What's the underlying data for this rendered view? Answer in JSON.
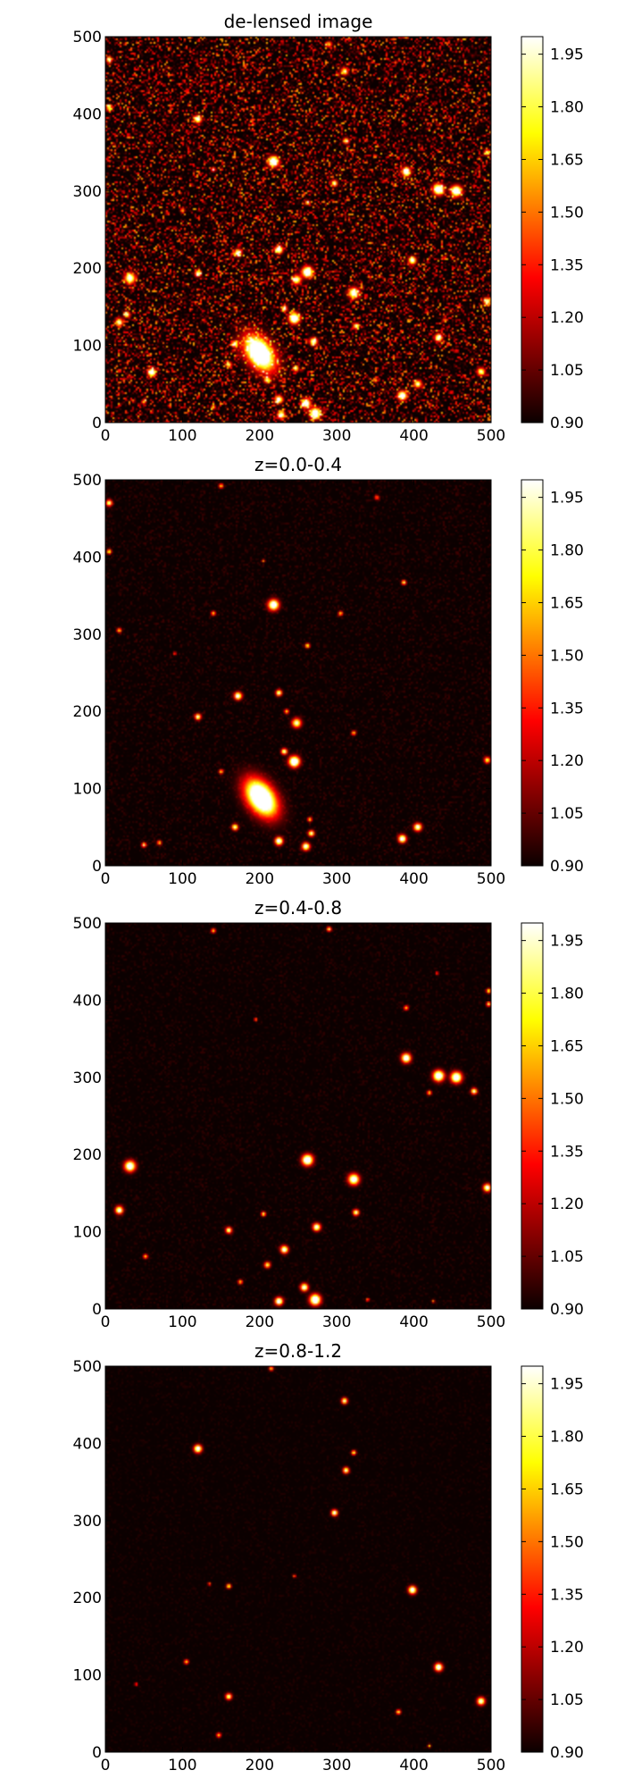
{
  "figure": {
    "background": "#ffffff",
    "colormap": "hot"
  },
  "chart_data": [
    {
      "type": "heatmap",
      "title": "de-lensed image",
      "xlabel": "",
      "ylabel": "",
      "xlim": [
        0,
        500
      ],
      "ylim": [
        0,
        500
      ],
      "xticks": [
        0,
        100,
        200,
        300,
        400,
        500
      ],
      "yticks": [
        0,
        100,
        200,
        300,
        400,
        500
      ],
      "colorbar": {
        "range": [
          0.9,
          2.0
        ],
        "ticks": [
          "0.90",
          "1.05",
          "1.20",
          "1.35",
          "1.50",
          "1.65",
          "1.80",
          "1.95"
        ]
      },
      "noise": 0.32,
      "sources": [
        {
          "x": 200,
          "y": 90,
          "r": 16,
          "i": 2.0
        },
        {
          "x": 218,
          "y": 338,
          "r": 7,
          "i": 1.8
        },
        {
          "x": 390,
          "y": 325,
          "r": 6,
          "i": 1.7
        },
        {
          "x": 432,
          "y": 302,
          "r": 7,
          "i": 1.9
        },
        {
          "x": 455,
          "y": 300,
          "r": 7,
          "i": 1.9
        },
        {
          "x": 32,
          "y": 187,
          "r": 7,
          "i": 1.7
        },
        {
          "x": 262,
          "y": 195,
          "r": 7,
          "i": 1.9
        },
        {
          "x": 322,
          "y": 168,
          "r": 7,
          "i": 1.7
        },
        {
          "x": 245,
          "y": 135,
          "r": 7,
          "i": 1.9
        },
        {
          "x": 60,
          "y": 65,
          "r": 5,
          "i": 1.9
        },
        {
          "x": 120,
          "y": 393,
          "r": 5,
          "i": 1.7
        },
        {
          "x": 398,
          "y": 210,
          "r": 5,
          "i": 1.7
        },
        {
          "x": 432,
          "y": 110,
          "r": 5,
          "i": 1.7
        },
        {
          "x": 487,
          "y": 66,
          "r": 5,
          "i": 1.6
        },
        {
          "x": 225,
          "y": 224,
          "r": 5,
          "i": 1.8
        },
        {
          "x": 248,
          "y": 185,
          "r": 6,
          "i": 1.6
        },
        {
          "x": 172,
          "y": 220,
          "r": 5,
          "i": 1.6
        },
        {
          "x": 270,
          "y": 105,
          "r": 5,
          "i": 1.7
        },
        {
          "x": 385,
          "y": 35,
          "r": 6,
          "i": 1.8
        },
        {
          "x": 405,
          "y": 50,
          "r": 5,
          "i": 1.6
        },
        {
          "x": 225,
          "y": 30,
          "r": 5,
          "i": 1.7
        },
        {
          "x": 260,
          "y": 25,
          "r": 6,
          "i": 1.8
        },
        {
          "x": 272,
          "y": 12,
          "r": 7,
          "i": 1.9
        },
        {
          "x": 228,
          "y": 10,
          "r": 5,
          "i": 1.7
        },
        {
          "x": 18,
          "y": 130,
          "r": 5,
          "i": 1.6
        },
        {
          "x": 28,
          "y": 140,
          "r": 4,
          "i": 1.6
        },
        {
          "x": 310,
          "y": 455,
          "r": 5,
          "i": 1.5
        },
        {
          "x": 297,
          "y": 310,
          "r": 4,
          "i": 1.6
        },
        {
          "x": 312,
          "y": 365,
          "r": 4,
          "i": 1.5
        },
        {
          "x": 495,
          "y": 350,
          "r": 4,
          "i": 1.5
        },
        {
          "x": 495,
          "y": 157,
          "r": 5,
          "i": 1.6
        },
        {
          "x": 160,
          "y": 75,
          "r": 4,
          "i": 1.5
        },
        {
          "x": 168,
          "y": 102,
          "r": 4,
          "i": 1.6
        },
        {
          "x": 120,
          "y": 193,
          "r": 4,
          "i": 1.6
        },
        {
          "x": 210,
          "y": 55,
          "r": 4,
          "i": 1.5
        },
        {
          "x": 247,
          "y": 70,
          "r": 4,
          "i": 1.5
        },
        {
          "x": 290,
          "y": 490,
          "r": 4,
          "i": 1.4
        },
        {
          "x": 5,
          "y": 470,
          "r": 4,
          "i": 1.5
        },
        {
          "x": 5,
          "y": 408,
          "r": 4,
          "i": 1.5
        },
        {
          "x": 140,
          "y": 328,
          "r": 3,
          "i": 1.4
        },
        {
          "x": 262,
          "y": 285,
          "r": 3,
          "i": 1.5
        },
        {
          "x": 325,
          "y": 125,
          "r": 4,
          "i": 1.5
        },
        {
          "x": 232,
          "y": 148,
          "r": 4,
          "i": 1.5
        },
        {
          "x": 100,
          "y": 275,
          "r": 3,
          "i": 1.4
        },
        {
          "x": 350,
          "y": 55,
          "r": 3,
          "i": 1.4
        },
        {
          "x": 440,
          "y": 133,
          "r": 3,
          "i": 1.3
        },
        {
          "x": 50,
          "y": 27,
          "r": 3,
          "i": 1.4
        },
        {
          "x": 140,
          "y": 20,
          "r": 3,
          "i": 1.4
        }
      ]
    },
    {
      "type": "heatmap",
      "title": "z=0.0-0.4",
      "xlabel": "",
      "ylabel": "",
      "xlim": [
        0,
        500
      ],
      "ylim": [
        0,
        500
      ],
      "xticks": [
        0,
        100,
        200,
        300,
        400,
        500
      ],
      "yticks": [
        0,
        100,
        200,
        300,
        400,
        500
      ],
      "colorbar": {
        "range": [
          0.9,
          2.0
        ],
        "ticks": [
          "0.90",
          "1.05",
          "1.20",
          "1.35",
          "1.50",
          "1.65",
          "1.80",
          "1.95"
        ]
      },
      "noise": 0.04,
      "sources": [
        {
          "x": 202,
          "y": 88,
          "r": 17,
          "i": 2.0
        },
        {
          "x": 218,
          "y": 338,
          "r": 7,
          "i": 1.8
        },
        {
          "x": 245,
          "y": 135,
          "r": 7,
          "i": 1.9
        },
        {
          "x": 172,
          "y": 220,
          "r": 5,
          "i": 1.7
        },
        {
          "x": 248,
          "y": 185,
          "r": 6,
          "i": 1.6
        },
        {
          "x": 225,
          "y": 224,
          "r": 4,
          "i": 1.6
        },
        {
          "x": 120,
          "y": 193,
          "r": 4,
          "i": 1.6
        },
        {
          "x": 168,
          "y": 50,
          "r": 4,
          "i": 1.6
        },
        {
          "x": 225,
          "y": 32,
          "r": 5,
          "i": 1.8
        },
        {
          "x": 260,
          "y": 25,
          "r": 5,
          "i": 1.7
        },
        {
          "x": 267,
          "y": 42,
          "r": 4,
          "i": 1.6
        },
        {
          "x": 385,
          "y": 35,
          "r": 5,
          "i": 1.8
        },
        {
          "x": 405,
          "y": 50,
          "r": 5,
          "i": 1.7
        },
        {
          "x": 232,
          "y": 148,
          "r": 4,
          "i": 1.6
        },
        {
          "x": 495,
          "y": 137,
          "r": 4,
          "i": 1.5
        },
        {
          "x": 5,
          "y": 470,
          "r": 4,
          "i": 1.6
        },
        {
          "x": 5,
          "y": 407,
          "r": 3,
          "i": 1.5
        },
        {
          "x": 387,
          "y": 367,
          "r": 3,
          "i": 1.5
        },
        {
          "x": 140,
          "y": 327,
          "r": 3,
          "i": 1.4
        },
        {
          "x": 305,
          "y": 327,
          "r": 3,
          "i": 1.4
        },
        {
          "x": 262,
          "y": 285,
          "r": 3,
          "i": 1.5
        },
        {
          "x": 50,
          "y": 27,
          "r": 3,
          "i": 1.5
        },
        {
          "x": 70,
          "y": 30,
          "r": 3,
          "i": 1.4
        },
        {
          "x": 150,
          "y": 492,
          "r": 3,
          "i": 1.4
        },
        {
          "x": 18,
          "y": 305,
          "r": 3,
          "i": 1.4
        },
        {
          "x": 322,
          "y": 172,
          "r": 3,
          "i": 1.4
        },
        {
          "x": 150,
          "y": 122,
          "r": 3,
          "i": 1.4
        },
        {
          "x": 265,
          "y": 60,
          "r": 3,
          "i": 1.4
        },
        {
          "x": 352,
          "y": 477,
          "r": 3,
          "i": 1.3
        },
        {
          "x": 90,
          "y": 275,
          "r": 2,
          "i": 1.3
        },
        {
          "x": 205,
          "y": 395,
          "r": 2,
          "i": 1.3
        },
        {
          "x": 235,
          "y": 200,
          "r": 3,
          "i": 1.4
        }
      ]
    },
    {
      "type": "heatmap",
      "title": "z=0.4-0.8",
      "xlabel": "",
      "ylabel": "",
      "xlim": [
        0,
        500
      ],
      "ylim": [
        0,
        500
      ],
      "xticks": [
        0,
        100,
        200,
        300,
        400,
        500
      ],
      "yticks": [
        0,
        100,
        200,
        300,
        400,
        500
      ],
      "colorbar": {
        "range": [
          0.9,
          2.0
        ],
        "ticks": [
          "0.90",
          "1.05",
          "1.20",
          "1.35",
          "1.50",
          "1.65",
          "1.80",
          "1.95"
        ]
      },
      "noise": 0.03,
      "sources": [
        {
          "x": 390,
          "y": 325,
          "r": 6,
          "i": 1.8
        },
        {
          "x": 432,
          "y": 302,
          "r": 7,
          "i": 1.9
        },
        {
          "x": 455,
          "y": 300,
          "r": 7,
          "i": 1.9
        },
        {
          "x": 478,
          "y": 282,
          "r": 4,
          "i": 1.6
        },
        {
          "x": 32,
          "y": 185,
          "r": 7,
          "i": 1.8
        },
        {
          "x": 262,
          "y": 193,
          "r": 7,
          "i": 1.9
        },
        {
          "x": 322,
          "y": 168,
          "r": 7,
          "i": 1.8
        },
        {
          "x": 495,
          "y": 157,
          "r": 5,
          "i": 1.7
        },
        {
          "x": 18,
          "y": 128,
          "r": 5,
          "i": 1.7
        },
        {
          "x": 160,
          "y": 102,
          "r": 4,
          "i": 1.6
        },
        {
          "x": 274,
          "y": 106,
          "r": 5,
          "i": 1.7
        },
        {
          "x": 232,
          "y": 77,
          "r": 5,
          "i": 1.7
        },
        {
          "x": 210,
          "y": 57,
          "r": 4,
          "i": 1.5
        },
        {
          "x": 225,
          "y": 10,
          "r": 5,
          "i": 1.8
        },
        {
          "x": 258,
          "y": 28,
          "r": 5,
          "i": 1.7
        },
        {
          "x": 272,
          "y": 12,
          "r": 7,
          "i": 1.9
        },
        {
          "x": 325,
          "y": 125,
          "r": 4,
          "i": 1.6
        },
        {
          "x": 205,
          "y": 123,
          "r": 3,
          "i": 1.5
        },
        {
          "x": 497,
          "y": 412,
          "r": 3,
          "i": 1.5
        },
        {
          "x": 497,
          "y": 395,
          "r": 3,
          "i": 1.5
        },
        {
          "x": 390,
          "y": 390,
          "r": 3,
          "i": 1.4
        },
        {
          "x": 420,
          "y": 280,
          "r": 3,
          "i": 1.4
        },
        {
          "x": 290,
          "y": 492,
          "r": 3,
          "i": 1.5
        },
        {
          "x": 140,
          "y": 490,
          "r": 3,
          "i": 1.4
        },
        {
          "x": 195,
          "y": 375,
          "r": 2,
          "i": 1.4
        },
        {
          "x": 52,
          "y": 68,
          "r": 3,
          "i": 1.4
        },
        {
          "x": 175,
          "y": 35,
          "r": 3,
          "i": 1.4
        },
        {
          "x": 430,
          "y": 435,
          "r": 2,
          "i": 1.3
        },
        {
          "x": 340,
          "y": 12,
          "r": 2,
          "i": 1.4
        },
        {
          "x": 425,
          "y": 10,
          "r": 2,
          "i": 1.3
        }
      ]
    },
    {
      "type": "heatmap",
      "title": "z=0.8-1.2",
      "xlabel": "",
      "ylabel": "",
      "xlim": [
        0,
        500
      ],
      "ylim": [
        0,
        500
      ],
      "xticks": [
        0,
        100,
        200,
        300,
        400,
        500
      ],
      "yticks": [
        0,
        100,
        200,
        300,
        400,
        500
      ],
      "colorbar": {
        "range": [
          0.9,
          2.0
        ],
        "ticks": [
          "0.90",
          "1.05",
          "1.20",
          "1.35",
          "1.50",
          "1.65",
          "1.80",
          "1.95"
        ]
      },
      "noise": 0.02,
      "sources": [
        {
          "x": 120,
          "y": 393,
          "r": 5,
          "i": 1.8
        },
        {
          "x": 310,
          "y": 455,
          "r": 4,
          "i": 1.6
        },
        {
          "x": 312,
          "y": 365,
          "r": 4,
          "i": 1.6
        },
        {
          "x": 297,
          "y": 310,
          "r": 4,
          "i": 1.7
        },
        {
          "x": 398,
          "y": 210,
          "r": 5,
          "i": 1.8
        },
        {
          "x": 432,
          "y": 110,
          "r": 5,
          "i": 1.8
        },
        {
          "x": 487,
          "y": 66,
          "r": 5,
          "i": 1.7
        },
        {
          "x": 160,
          "y": 72,
          "r": 4,
          "i": 1.6
        },
        {
          "x": 160,
          "y": 215,
          "r": 3,
          "i": 1.5
        },
        {
          "x": 380,
          "y": 52,
          "r": 3,
          "i": 1.5
        },
        {
          "x": 322,
          "y": 388,
          "r": 3,
          "i": 1.5
        },
        {
          "x": 105,
          "y": 117,
          "r": 3,
          "i": 1.4
        },
        {
          "x": 147,
          "y": 22,
          "r": 3,
          "i": 1.4
        },
        {
          "x": 420,
          "y": 8,
          "r": 2,
          "i": 1.4
        },
        {
          "x": 215,
          "y": 497,
          "r": 3,
          "i": 1.4
        },
        {
          "x": 245,
          "y": 228,
          "r": 2,
          "i": 1.3
        },
        {
          "x": 135,
          "y": 218,
          "r": 2,
          "i": 1.3
        },
        {
          "x": 40,
          "y": 88,
          "r": 2,
          "i": 1.3
        }
      ]
    }
  ]
}
